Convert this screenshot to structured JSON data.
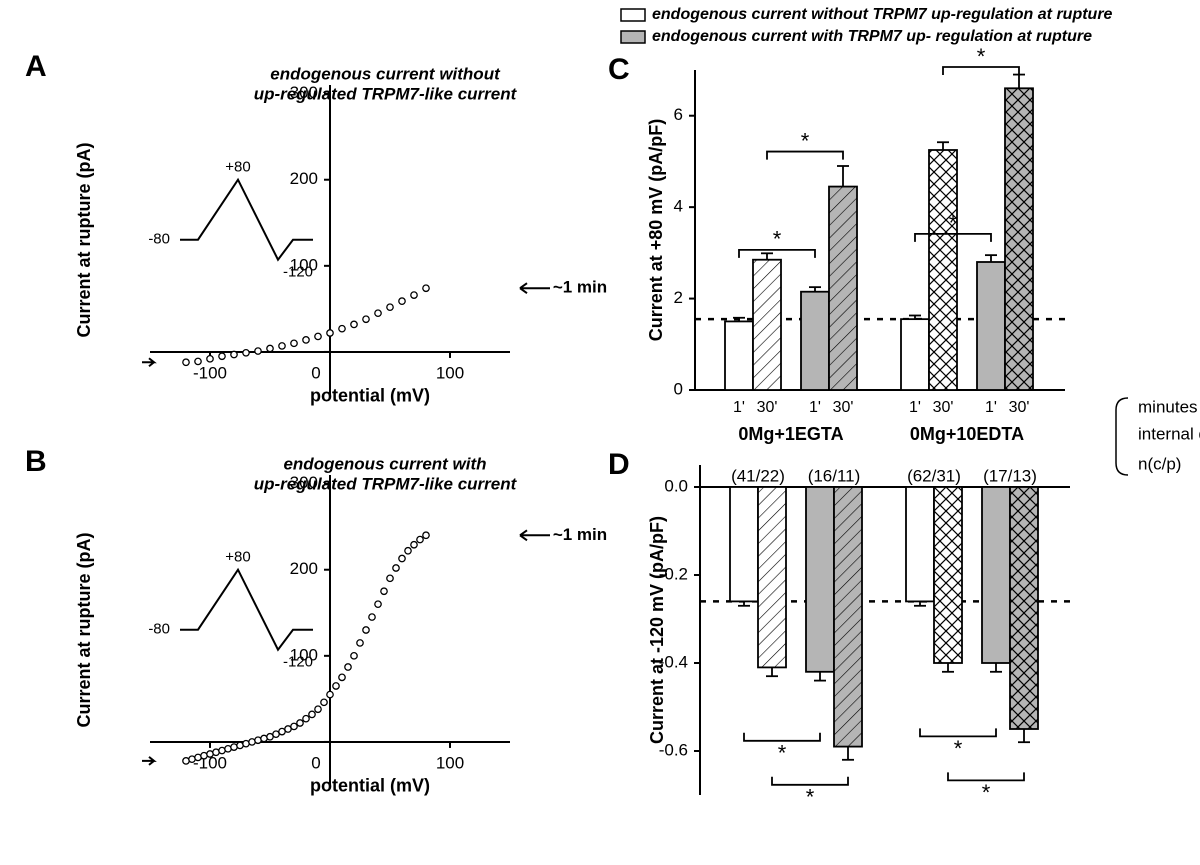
{
  "legend": {
    "item1": "endogenous current without TRPM7 up-regulation at rupture",
    "item2": "endogenous current with TRPM7 up- regulation at rupture"
  },
  "panelA": {
    "label": "A",
    "title1": "endogenous current  without",
    "title2": "up-regulated TRPM7-like current",
    "ylabel": "Current at rupture (pA)",
    "xlabel": "potential (mV)",
    "xlim": [
      -150,
      150
    ],
    "ylim": [
      -50,
      310
    ],
    "xticks": [
      -100,
      0,
      100
    ],
    "yticks": [
      0,
      100,
      200,
      300
    ],
    "marker": "~1 min",
    "protocol": {
      "from": "-80",
      "peak": "+80",
      "dip": "-120"
    },
    "curve": [
      [
        -120,
        -12
      ],
      [
        -110,
        -11
      ],
      [
        -100,
        -8
      ],
      [
        -90,
        -5
      ],
      [
        -80,
        -3
      ],
      [
        -70,
        -1
      ],
      [
        -60,
        1
      ],
      [
        -50,
        4
      ],
      [
        -40,
        7
      ],
      [
        -30,
        10
      ],
      [
        -20,
        14
      ],
      [
        -10,
        18
      ],
      [
        0,
        22
      ],
      [
        10,
        27
      ],
      [
        20,
        32
      ],
      [
        30,
        38
      ],
      [
        40,
        45
      ],
      [
        50,
        52
      ],
      [
        60,
        59
      ],
      [
        70,
        66
      ],
      [
        80,
        74
      ]
    ]
  },
  "panelB": {
    "label": "B",
    "title1": "endogenous current with",
    "title2": "up-regulated TRPM7-like current",
    "ylabel": "Current at rupture (pA)",
    "xlabel": "potential (mV)",
    "xlim": [
      -150,
      150
    ],
    "ylim": [
      -50,
      310
    ],
    "xticks": [
      -100,
      0,
      100
    ],
    "yticks": [
      0,
      100,
      200,
      300
    ],
    "marker": "~1 min",
    "protocol": {
      "from": "-80",
      "peak": "+80",
      "dip": "-120"
    },
    "curve": [
      [
        -120,
        -22
      ],
      [
        -115,
        -20
      ],
      [
        -110,
        -18
      ],
      [
        -105,
        -16
      ],
      [
        -100,
        -14
      ],
      [
        -95,
        -12
      ],
      [
        -90,
        -10
      ],
      [
        -85,
        -8
      ],
      [
        -80,
        -6
      ],
      [
        -75,
        -4
      ],
      [
        -70,
        -2
      ],
      [
        -65,
        0
      ],
      [
        -60,
        2
      ],
      [
        -55,
        4
      ],
      [
        -50,
        6
      ],
      [
        -45,
        9
      ],
      [
        -40,
        12
      ],
      [
        -35,
        15
      ],
      [
        -30,
        18
      ],
      [
        -25,
        22
      ],
      [
        -20,
        27
      ],
      [
        -15,
        32
      ],
      [
        -10,
        38
      ],
      [
        -5,
        46
      ],
      [
        0,
        55
      ],
      [
        5,
        65
      ],
      [
        10,
        75
      ],
      [
        15,
        87
      ],
      [
        20,
        100
      ],
      [
        25,
        115
      ],
      [
        30,
        130
      ],
      [
        35,
        145
      ],
      [
        40,
        160
      ],
      [
        45,
        175
      ],
      [
        50,
        190
      ],
      [
        55,
        202
      ],
      [
        60,
        213
      ],
      [
        65,
        222
      ],
      [
        70,
        229
      ],
      [
        75,
        235
      ],
      [
        80,
        240
      ]
    ]
  },
  "panelC": {
    "label": "C",
    "ylabel": "Current at +80 mV (pA/pF)",
    "ylim": [
      0,
      7
    ],
    "yticks": [
      0,
      2,
      4,
      6
    ],
    "dashed_at": 1.55,
    "groups": [
      "0Mg+1EGTA",
      "0Mg+10EDTA"
    ],
    "time_labels": [
      "1'",
      "30'",
      "1'",
      "30'",
      "1'",
      "30'",
      "1'",
      "30'"
    ],
    "bars": [
      {
        "y": 1.5,
        "err": 0.08,
        "fill": "none"
      },
      {
        "y": 2.85,
        "err": 0.14,
        "fill": "diag"
      },
      {
        "y": 2.15,
        "err": 0.1,
        "fill": "gray"
      },
      {
        "y": 4.45,
        "err": 0.45,
        "fill": "gray-diag"
      },
      {
        "y": 1.55,
        "err": 0.08,
        "fill": "none"
      },
      {
        "y": 5.25,
        "err": 0.17,
        "fill": "cross"
      },
      {
        "y": 2.8,
        "err": 0.15,
        "fill": "gray"
      },
      {
        "y": 6.6,
        "err": 0.3,
        "fill": "gray-cross"
      }
    ],
    "row_labels": [
      "minutes",
      "internal dialysis",
      "n(c/p)"
    ],
    "sig": [
      {
        "from": 0,
        "to": 2,
        "y": 3.0,
        "label": "*"
      },
      {
        "from": 1,
        "to": 3,
        "y": 5.15,
        "label": "*"
      },
      {
        "from": 4,
        "to": 6,
        "y": 3.35,
        "label": "*"
      },
      {
        "from": 5,
        "to": 7,
        "y": 7.0,
        "label": "*"
      }
    ]
  },
  "panelD": {
    "label": "D",
    "ylabel": "Current at -120 mV (pA/pF)",
    "ylim": [
      -0.7,
      0.05
    ],
    "yticks": [
      0.0,
      -0.2,
      -0.4,
      -0.6
    ],
    "dashed_at": -0.26,
    "n_labels": [
      "(41/22)",
      "(16/11)",
      "(62/31)",
      "(17/13)"
    ],
    "bars": [
      {
        "y": -0.26,
        "err": 0.01,
        "fill": "none"
      },
      {
        "y": -0.41,
        "err": 0.02,
        "fill": "diag"
      },
      {
        "y": -0.42,
        "err": 0.02,
        "fill": "gray"
      },
      {
        "y": -0.59,
        "err": 0.03,
        "fill": "gray-diag"
      },
      {
        "y": -0.26,
        "err": 0.01,
        "fill": "none"
      },
      {
        "y": -0.4,
        "err": 0.02,
        "fill": "cross"
      },
      {
        "y": -0.4,
        "err": 0.02,
        "fill": "gray"
      },
      {
        "y": -0.55,
        "err": 0.03,
        "fill": "gray-cross"
      }
    ],
    "sig": [
      {
        "from": 0,
        "to": 2,
        "y": -0.57,
        "label": "*"
      },
      {
        "from": 1,
        "to": 3,
        "y": -0.67,
        "label": "*"
      },
      {
        "from": 4,
        "to": 6,
        "y": -0.56,
        "label": "*"
      },
      {
        "from": 5,
        "to": 7,
        "y": -0.66,
        "label": "*"
      }
    ]
  },
  "style": {
    "marker_r": 3.2,
    "marker_stroke": "#000000",
    "marker_fill": "#ffffff",
    "gray": "#b5b5b5",
    "axis_stroke": "#000000",
    "bar_stroke": "#000000"
  }
}
